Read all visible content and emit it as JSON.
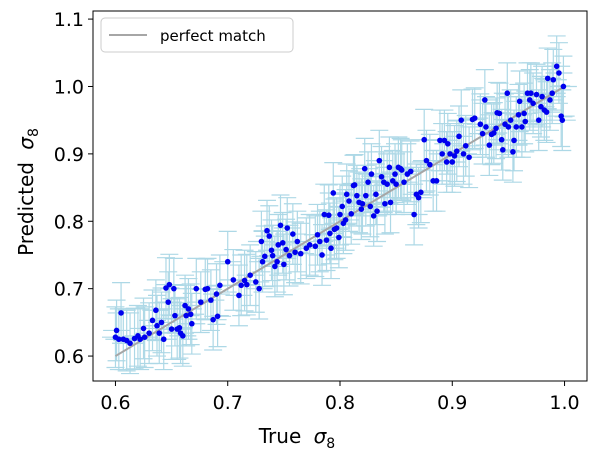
{
  "chart_data": {
    "type": "scatter",
    "xlabel_main": "True",
    "xlabel_symbol": "σ",
    "xlabel_sub": "8",
    "ylabel_main": "Predicted",
    "ylabel_symbol": "σ",
    "ylabel_sub": "8",
    "xlim": [
      0.58,
      1.02
    ],
    "ylim": [
      0.563,
      1.112
    ],
    "xticks": [
      0.6,
      0.7,
      0.8,
      0.9,
      1.0
    ],
    "xtick_labels": [
      "0.6",
      "0.7",
      "0.8",
      "0.9",
      "1.0"
    ],
    "yticks": [
      0.6,
      0.7,
      0.8,
      0.9,
      1.0,
      1.1
    ],
    "ytick_labels": [
      "0.6",
      "0.7",
      "0.8",
      "0.9",
      "1.0",
      "1.1"
    ],
    "grid": false,
    "legend": {
      "placement": "top-left",
      "entries": [
        {
          "label": "perfect match",
          "color": "#a6a6a6"
        }
      ]
    },
    "perfect_match": {
      "x": [
        0.6,
        1.0
      ],
      "y": [
        0.6,
        1.0
      ],
      "color": "#a6a6a6"
    },
    "point_color": "#0000ee",
    "errorbar_color": "#add8e6",
    "x_error": 0.012,
    "y_error": 0.045,
    "points": [
      [
        0.6,
        0.628
      ],
      [
        0.601,
        0.638
      ],
      [
        0.603,
        0.625
      ],
      [
        0.605,
        0.664
      ],
      [
        0.607,
        0.625
      ],
      [
        0.61,
        0.623
      ],
      [
        0.613,
        0.619
      ],
      [
        0.617,
        0.626
      ],
      [
        0.62,
        0.63
      ],
      [
        0.622,
        0.625
      ],
      [
        0.625,
        0.641
      ],
      [
        0.626,
        0.628
      ],
      [
        0.63,
        0.634
      ],
      [
        0.633,
        0.653
      ],
      [
        0.636,
        0.668
      ],
      [
        0.637,
        0.645
      ],
      [
        0.639,
        0.634
      ],
      [
        0.641,
        0.65
      ],
      [
        0.643,
        0.625
      ],
      [
        0.645,
        0.701
      ],
      [
        0.647,
        0.68
      ],
      [
        0.648,
        0.706
      ],
      [
        0.65,
        0.64
      ],
      [
        0.652,
        0.7
      ],
      [
        0.653,
        0.66
      ],
      [
        0.655,
        0.64
      ],
      [
        0.657,
        0.642
      ],
      [
        0.658,
        0.634
      ],
      [
        0.66,
        0.63
      ],
      [
        0.662,
        0.675
      ],
      [
        0.663,
        0.66
      ],
      [
        0.665,
        0.67
      ],
      [
        0.667,
        0.662
      ],
      [
        0.668,
        0.648
      ],
      [
        0.672,
        0.7
      ],
      [
        0.676,
        0.68
      ],
      [
        0.68,
        0.699
      ],
      [
        0.682,
        0.7
      ],
      [
        0.685,
        0.683
      ],
      [
        0.687,
        0.654
      ],
      [
        0.69,
        0.692
      ],
      [
        0.691,
        0.659
      ],
      [
        0.693,
        0.705
      ],
      [
        0.7,
        0.74
      ],
      [
        0.705,
        0.713
      ],
      [
        0.71,
        0.69
      ],
      [
        0.712,
        0.705
      ],
      [
        0.715,
        0.712
      ],
      [
        0.717,
        0.706
      ],
      [
        0.72,
        0.72
      ],
      [
        0.725,
        0.71
      ],
      [
        0.728,
        0.7
      ],
      [
        0.73,
        0.77
      ],
      [
        0.731,
        0.74
      ],
      [
        0.733,
        0.748
      ],
      [
        0.735,
        0.786
      ],
      [
        0.737,
        0.778
      ],
      [
        0.739,
        0.757
      ],
      [
        0.74,
        0.749
      ],
      [
        0.742,
        0.733
      ],
      [
        0.744,
        0.74
      ],
      [
        0.745,
        0.765
      ],
      [
        0.747,
        0.794
      ],
      [
        0.749,
        0.768
      ],
      [
        0.75,
        0.736
      ],
      [
        0.752,
        0.758
      ],
      [
        0.753,
        0.79
      ],
      [
        0.755,
        0.749
      ],
      [
        0.758,
        0.781
      ],
      [
        0.76,
        0.754
      ],
      [
        0.762,
        0.77
      ],
      [
        0.765,
        0.752
      ],
      [
        0.77,
        0.76
      ],
      [
        0.773,
        0.765
      ],
      [
        0.778,
        0.763
      ],
      [
        0.78,
        0.78
      ],
      [
        0.782,
        0.77
      ],
      [
        0.784,
        0.75
      ],
      [
        0.786,
        0.81
      ],
      [
        0.788,
        0.772
      ],
      [
        0.79,
        0.809
      ],
      [
        0.791,
        0.782
      ],
      [
        0.792,
        0.76
      ],
      [
        0.794,
        0.842
      ],
      [
        0.795,
        0.788
      ],
      [
        0.797,
        0.79
      ],
      [
        0.799,
        0.776
      ],
      [
        0.8,
        0.81
      ],
      [
        0.802,
        0.822
      ],
      [
        0.803,
        0.797
      ],
      [
        0.805,
        0.802
      ],
      [
        0.806,
        0.84
      ],
      [
        0.808,
        0.83
      ],
      [
        0.81,
        0.811
      ],
      [
        0.812,
        0.853
      ],
      [
        0.813,
        0.854
      ],
      [
        0.815,
        0.838
      ],
      [
        0.817,
        0.828
      ],
      [
        0.819,
        0.818
      ],
      [
        0.82,
        0.826
      ],
      [
        0.822,
        0.878
      ],
      [
        0.823,
        0.838
      ],
      [
        0.825,
        0.858
      ],
      [
        0.827,
        0.822
      ],
      [
        0.828,
        0.87
      ],
      [
        0.83,
        0.808
      ],
      [
        0.832,
        0.84
      ],
      [
        0.833,
        0.815
      ],
      [
        0.835,
        0.89
      ],
      [
        0.837,
        0.866
      ],
      [
        0.839,
        0.858
      ],
      [
        0.84,
        0.826
      ],
      [
        0.842,
        0.855
      ],
      [
        0.844,
        0.88
      ],
      [
        0.845,
        0.828
      ],
      [
        0.847,
        0.86
      ],
      [
        0.849,
        0.87
      ],
      [
        0.85,
        0.855
      ],
      [
        0.852,
        0.88
      ],
      [
        0.854,
        0.878
      ],
      [
        0.855,
        0.876
      ],
      [
        0.857,
        0.858
      ],
      [
        0.86,
        0.87
      ],
      [
        0.863,
        0.874
      ],
      [
        0.866,
        0.81
      ],
      [
        0.868,
        0.84
      ],
      [
        0.87,
        0.835
      ],
      [
        0.872,
        0.843
      ],
      [
        0.875,
        0.921
      ],
      [
        0.877,
        0.89
      ],
      [
        0.88,
        0.884
      ],
      [
        0.883,
        0.86
      ],
      [
        0.886,
        0.86
      ],
      [
        0.889,
        0.92
      ],
      [
        0.891,
        0.9
      ],
      [
        0.893,
        0.92
      ],
      [
        0.895,
        0.888
      ],
      [
        0.896,
        0.915
      ],
      [
        0.898,
        0.9
      ],
      [
        0.9,
        0.888
      ],
      [
        0.902,
        0.897
      ],
      [
        0.904,
        0.904
      ],
      [
        0.906,
        0.926
      ],
      [
        0.908,
        0.95
      ],
      [
        0.91,
        0.9
      ],
      [
        0.912,
        0.912
      ],
      [
        0.915,
        0.895
      ],
      [
        0.918,
        0.951
      ],
      [
        0.92,
        0.953
      ],
      [
        0.925,
        0.944
      ],
      [
        0.927,
        0.93
      ],
      [
        0.929,
        0.98
      ],
      [
        0.93,
        0.94
      ],
      [
        0.933,
        0.913
      ],
      [
        0.935,
        0.929
      ],
      [
        0.937,
        0.931
      ],
      [
        0.939,
        0.938
      ],
      [
        0.94,
        0.961
      ],
      [
        0.942,
        0.96
      ],
      [
        0.944,
        0.921
      ],
      [
        0.945,
        0.906
      ],
      [
        0.947,
        0.944
      ],
      [
        0.949,
        0.99
      ],
      [
        0.95,
        0.94
      ],
      [
        0.952,
        0.95
      ],
      [
        0.954,
        0.903
      ],
      [
        0.955,
        0.92
      ],
      [
        0.957,
        0.94
      ],
      [
        0.959,
        0.958
      ],
      [
        0.96,
        0.978
      ],
      [
        0.962,
        0.94
      ],
      [
        0.964,
        0.96
      ],
      [
        0.965,
        0.948
      ],
      [
        0.967,
        0.99
      ],
      [
        0.969,
        0.98
      ],
      [
        0.97,
        0.99
      ],
      [
        0.972,
        0.975
      ],
      [
        0.975,
        0.988
      ],
      [
        0.977,
        0.95
      ],
      [
        0.979,
        0.97
      ],
      [
        0.98,
        0.985
      ],
      [
        0.982,
        0.965
      ],
      [
        0.984,
        0.962
      ],
      [
        0.985,
        1.012
      ],
      [
        0.987,
        0.98
      ],
      [
        0.989,
        0.99
      ],
      [
        0.99,
        1.01
      ],
      [
        0.993,
        1.03
      ],
      [
        0.995,
        1.02
      ],
      [
        0.997,
        0.956
      ],
      [
        0.998,
        0.95
      ],
      [
        0.999,
        1.0
      ]
    ]
  }
}
